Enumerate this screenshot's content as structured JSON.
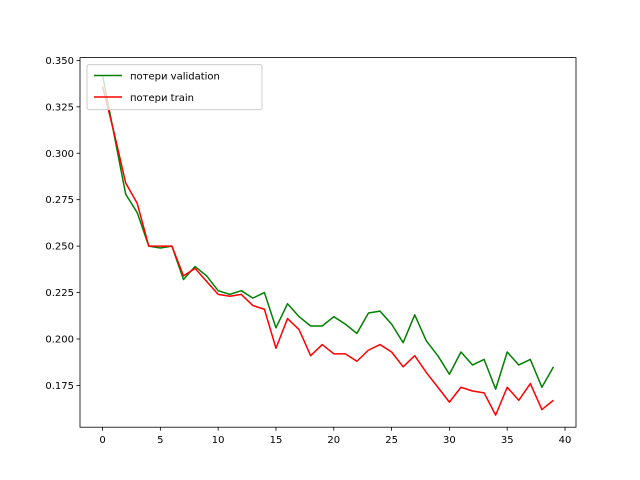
{
  "chart_data": {
    "type": "line",
    "title": "",
    "xlabel": "",
    "ylabel": "",
    "xlim": [
      -1.95,
      40.95
    ],
    "ylim": [
      0.1525,
      0.3515
    ],
    "x_ticks": [
      0,
      5,
      10,
      15,
      20,
      25,
      30,
      35,
      40
    ],
    "x_tick_labels": [
      "0",
      "5",
      "10",
      "15",
      "20",
      "25",
      "30",
      "35",
      "40"
    ],
    "y_ticks": [
      0.175,
      0.2,
      0.225,
      0.25,
      0.275,
      0.3,
      0.325,
      0.35
    ],
    "y_tick_labels": [
      "0.175",
      "0.200",
      "0.225",
      "0.250",
      "0.275",
      "0.300",
      "0.325",
      "0.350"
    ],
    "grid": false,
    "legend": "upper-left",
    "x": [
      0,
      1,
      2,
      3,
      4,
      5,
      6,
      7,
      8,
      9,
      10,
      11,
      12,
      13,
      14,
      15,
      16,
      17,
      18,
      19,
      20,
      21,
      22,
      23,
      24,
      25,
      26,
      27,
      28,
      29,
      30,
      31,
      32,
      33,
      34,
      35,
      36,
      37,
      38,
      39
    ],
    "series": [
      {
        "name": "потери validation",
        "color": "#008000",
        "values": [
          0.342,
          0.31,
          0.278,
          0.268,
          0.25,
          0.249,
          0.25,
          0.232,
          0.239,
          0.234,
          0.226,
          0.224,
          0.226,
          0.222,
          0.225,
          0.206,
          0.219,
          0.212,
          0.207,
          0.207,
          0.212,
          0.208,
          0.203,
          0.214,
          0.215,
          0.208,
          0.198,
          0.213,
          0.199,
          0.191,
          0.181,
          0.193,
          0.186,
          0.189,
          0.173,
          0.193,
          0.186,
          0.189,
          0.174,
          0.185
        ]
      },
      {
        "name": "потери train",
        "color": "#ff0000",
        "values": [
          0.336,
          0.311,
          0.284,
          0.273,
          0.25,
          0.25,
          0.25,
          0.234,
          0.238,
          0.231,
          0.224,
          0.223,
          0.224,
          0.218,
          0.216,
          0.195,
          0.211,
          0.205,
          0.191,
          0.197,
          0.192,
          0.192,
          0.188,
          0.194,
          0.197,
          0.193,
          0.185,
          0.191,
          0.182,
          0.174,
          0.166,
          0.174,
          0.172,
          0.171,
          0.159,
          0.174,
          0.167,
          0.176,
          0.162,
          0.167
        ]
      }
    ]
  }
}
